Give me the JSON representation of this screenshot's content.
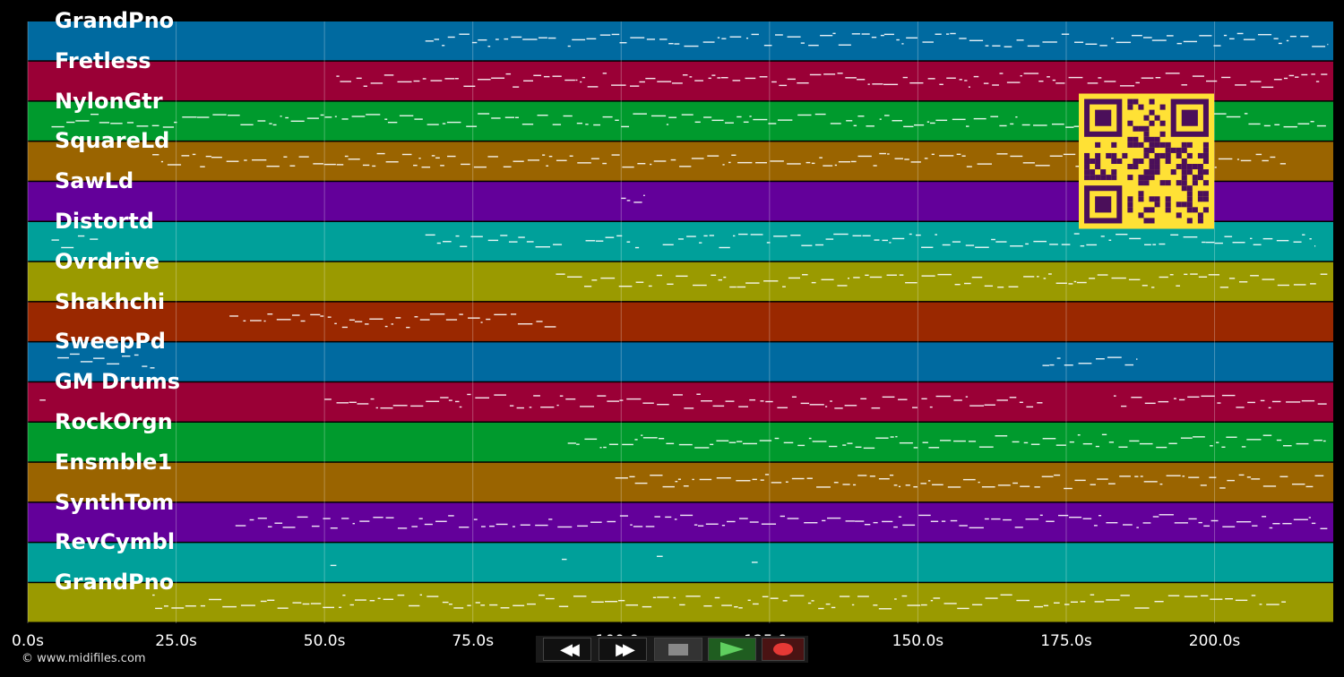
{
  "tracks": [
    {
      "name": "GrandPno",
      "color": "#006aa0"
    },
    {
      "name": "Fretless",
      "color": "#9a0036"
    },
    {
      "name": "NylonGtr",
      "color": "#009a2d"
    },
    {
      "name": "SquareLd",
      "color": "#9a6400"
    },
    {
      "name": "SawLd",
      "color": "#63009a"
    },
    {
      "name": "Distortd",
      "color": "#00a09a"
    },
    {
      "name": "Ovrdrive",
      "color": "#9a9a00"
    },
    {
      "name": "Shakhchi",
      "color": "#9a2800"
    },
    {
      "name": "SweepPd",
      "color": "#006aa0"
    },
    {
      "name": "GM Drums",
      "color": "#9a0036"
    },
    {
      "name": "RockOrgn",
      "color": "#009a2d"
    },
    {
      "name": "Ensmble1",
      "color": "#9a6400"
    },
    {
      "name": "SynthTom",
      "color": "#63009a"
    },
    {
      "name": "RevCymbl",
      "color": "#00a09a"
    },
    {
      "name": "GrandPno",
      "color": "#9a9a00"
    }
  ],
  "time_axis": {
    "max_seconds": 220,
    "ticks": [
      {
        "value": 0,
        "label": "0.0s"
      },
      {
        "value": 25,
        "label": "25.0s"
      },
      {
        "value": 50,
        "label": "50.0s"
      },
      {
        "value": 75,
        "label": "75.0s"
      },
      {
        "value": 100,
        "label": "100.0s"
      },
      {
        "value": 125,
        "label": "125.0s"
      },
      {
        "value": 150,
        "label": "150.0s"
      },
      {
        "value": 175,
        "label": "175.0s"
      },
      {
        "value": 200,
        "label": "200.0s"
      }
    ]
  },
  "note_spans": [
    [
      [
        67,
        89
      ],
      [
        91,
        219
      ]
    ],
    [
      [
        52,
        219
      ]
    ],
    [
      [
        4,
        219
      ]
    ],
    [
      [
        21,
        54
      ],
      [
        54,
        212
      ]
    ],
    [
      [
        100,
        104
      ]
    ],
    [
      [
        4,
        12
      ],
      [
        67,
        90
      ],
      [
        94,
        103
      ],
      [
        107,
        217
      ]
    ],
    [
      [
        89,
        219
      ]
    ],
    [
      [
        34,
        89
      ]
    ],
    [
      [
        5,
        22
      ],
      [
        171,
        187
      ]
    ],
    [
      [
        2,
        3
      ],
      [
        50,
        171
      ],
      [
        183,
        219
      ]
    ],
    [
      [
        91,
        219
      ]
    ],
    [
      [
        99,
        219
      ]
    ],
    [
      [
        35,
        51
      ],
      [
        51,
        219
      ]
    ],
    [
      [
        51,
        52
      ],
      [
        90,
        91
      ],
      [
        106,
        107
      ],
      [
        122,
        123
      ]
    ],
    [
      [
        21,
        212
      ]
    ]
  ],
  "transport": {
    "rewind_icon": "rewind-icon",
    "forward_icon": "fast-forward-icon",
    "stop_icon": "stop-icon",
    "play_icon": "play-icon",
    "record_icon": "record-icon",
    "colors": {
      "play": "#4caf50",
      "record": "#e53935",
      "stop": "#888888"
    }
  },
  "copyright": "© www.midifiles.com",
  "qr_color": {
    "bg": "#ffe135",
    "fg": "#4b0f5a"
  }
}
